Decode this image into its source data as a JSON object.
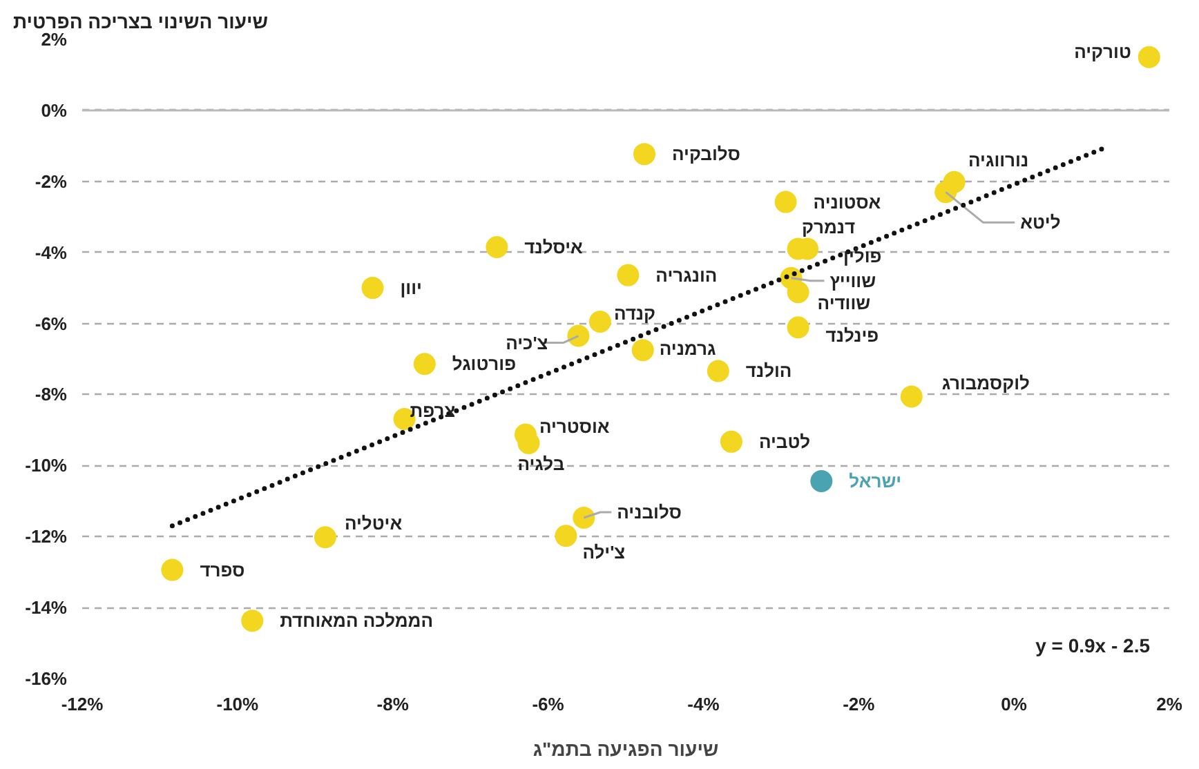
{
  "chart_data": {
    "type": "scatter",
    "ylabel": "שיעור השינוי בצריכה הפרטית",
    "xlabel": "שיעור הפגיעה בתמ\"ג",
    "xlim": [
      -12,
      2
    ],
    "ylim": [
      -16,
      2
    ],
    "xticks": [
      {
        "value": -12,
        "label": "-12%"
      },
      {
        "value": -10,
        "label": "-10%"
      },
      {
        "value": -8,
        "label": "-8%"
      },
      {
        "value": -6,
        "label": "-6%"
      },
      {
        "value": -4,
        "label": "-4%"
      },
      {
        "value": -2,
        "label": "-2%"
      },
      {
        "value": 0,
        "label": "0%"
      },
      {
        "value": 2,
        "label": "2%"
      }
    ],
    "yticks": [
      {
        "value": 2,
        "label": "2%"
      },
      {
        "value": 0,
        "label": "0%"
      },
      {
        "value": -2,
        "label": "-2%"
      },
      {
        "value": -4,
        "label": "-4%"
      },
      {
        "value": -6,
        "label": "-6%"
      },
      {
        "value": -8,
        "label": "-8%"
      },
      {
        "value": -10,
        "label": "-10%"
      },
      {
        "value": -12,
        "label": "-12%"
      },
      {
        "value": -14,
        "label": "-14%"
      },
      {
        "value": -16,
        "label": "-16%"
      }
    ],
    "grid": "y",
    "legend": false,
    "marker": "circle",
    "ref_lines": [
      {
        "axis": "y",
        "value": 0,
        "color": "#bbbbbb",
        "line_style": "solid"
      }
    ],
    "annotations": [
      "y = 0.9x - 2.5"
    ],
    "series": [
      {
        "name": "טורקיה",
        "color": "#f2d61f",
        "x": [
          1.74
        ],
        "values": [
          1.5
        ]
      },
      {
        "name": "סלובקיה",
        "color": "#f2d61f",
        "x": [
          -4.76
        ],
        "values": [
          -1.23
        ]
      },
      {
        "name": "נורווגיה",
        "color": "#f2d61f",
        "x": [
          -0.77
        ],
        "values": [
          -2.02
        ]
      },
      {
        "name": "ליטא",
        "color": "#f2d61f",
        "x": [
          -0.88
        ],
        "values": [
          -2.3
        ]
      },
      {
        "name": "אסטוניה",
        "color": "#f2d61f",
        "x": [
          -2.94
        ],
        "values": [
          -2.58
        ]
      },
      {
        "name": "דנמרק",
        "color": "#f2d61f",
        "x": [
          -2.78
        ],
        "values": [
          -3.9
        ]
      },
      {
        "name": "פולין",
        "color": "#f2d61f",
        "x": [
          -2.66
        ],
        "values": [
          -3.9
        ]
      },
      {
        "name": "איסלנד",
        "color": "#f2d61f",
        "x": [
          -6.66
        ],
        "values": [
          -3.85
        ]
      },
      {
        "name": "הונגריה",
        "color": "#f2d61f",
        "x": [
          -4.97
        ],
        "values": [
          -4.64
        ]
      },
      {
        "name": "שווייץ",
        "color": "#f2d61f",
        "x": [
          -2.87
        ],
        "values": [
          -4.72
        ]
      },
      {
        "name": "שוודיה",
        "color": "#f2d61f",
        "x": [
          -2.78
        ],
        "values": [
          -5.12
        ]
      },
      {
        "name": "יוון",
        "color": "#f2d61f",
        "x": [
          -8.26
        ],
        "values": [
          -5.0
        ]
      },
      {
        "name": "קנדה",
        "color": "#f2d61f",
        "x": [
          -5.33
        ],
        "values": [
          -5.95
        ]
      },
      {
        "name": "צ'כיה",
        "color": "#f2d61f",
        "x": [
          -5.61
        ],
        "values": [
          -6.35
        ]
      },
      {
        "name": "גרמניה",
        "color": "#f2d61f",
        "x": [
          -4.78
        ],
        "values": [
          -6.75
        ]
      },
      {
        "name": "פינלנד",
        "color": "#f2d61f",
        "x": [
          -2.78
        ],
        "values": [
          -6.11
        ]
      },
      {
        "name": "פורטוגל",
        "color": "#f2d61f",
        "x": [
          -7.59
        ],
        "values": [
          -7.14
        ]
      },
      {
        "name": "הולנד",
        "color": "#f2d61f",
        "x": [
          -3.81
        ],
        "values": [
          -7.34
        ]
      },
      {
        "name": "לוקסמבורג",
        "color": "#f2d61f",
        "x": [
          -1.32
        ],
        "values": [
          -8.06
        ]
      },
      {
        "name": "צרפת",
        "color": "#f2d61f",
        "x": [
          -7.85
        ],
        "values": [
          -8.69
        ]
      },
      {
        "name": "אוסטריה",
        "color": "#f2d61f",
        "x": [
          -6.29
        ],
        "values": [
          -9.13
        ]
      },
      {
        "name": "בלגיה",
        "color": "#f2d61f",
        "x": [
          -6.25
        ],
        "values": [
          -9.37
        ]
      },
      {
        "name": "לטביה",
        "color": "#f2d61f",
        "x": [
          -3.64
        ],
        "values": [
          -9.33
        ]
      },
      {
        "name": "ישראל",
        "color": "#4aa3b0",
        "x": [
          -2.48
        ],
        "values": [
          -10.44
        ]
      },
      {
        "name": "סלובניה",
        "color": "#f2d61f",
        "x": [
          -5.54
        ],
        "values": [
          -11.47
        ]
      },
      {
        "name": "צ'ילה",
        "color": "#f2d61f",
        "x": [
          -5.77
        ],
        "values": [
          -11.98
        ]
      },
      {
        "name": "איטליה",
        "color": "#f2d61f",
        "x": [
          -8.87
        ],
        "values": [
          -12.02
        ]
      },
      {
        "name": "ספרד",
        "color": "#f2d61f",
        "x": [
          -10.84
        ],
        "values": [
          -12.94
        ]
      },
      {
        "name": "הממלכה המאוחדת",
        "color": "#f2d61f",
        "x": [
          -9.81
        ],
        "values": [
          -14.37
        ]
      },
      {
        "type": "line",
        "color": "#111111",
        "line_style": "dotted",
        "marker": "none",
        "x": [
          -10.84,
          1.15
        ],
        "values": [
          -11.7,
          -1.07
        ]
      }
    ]
  }
}
